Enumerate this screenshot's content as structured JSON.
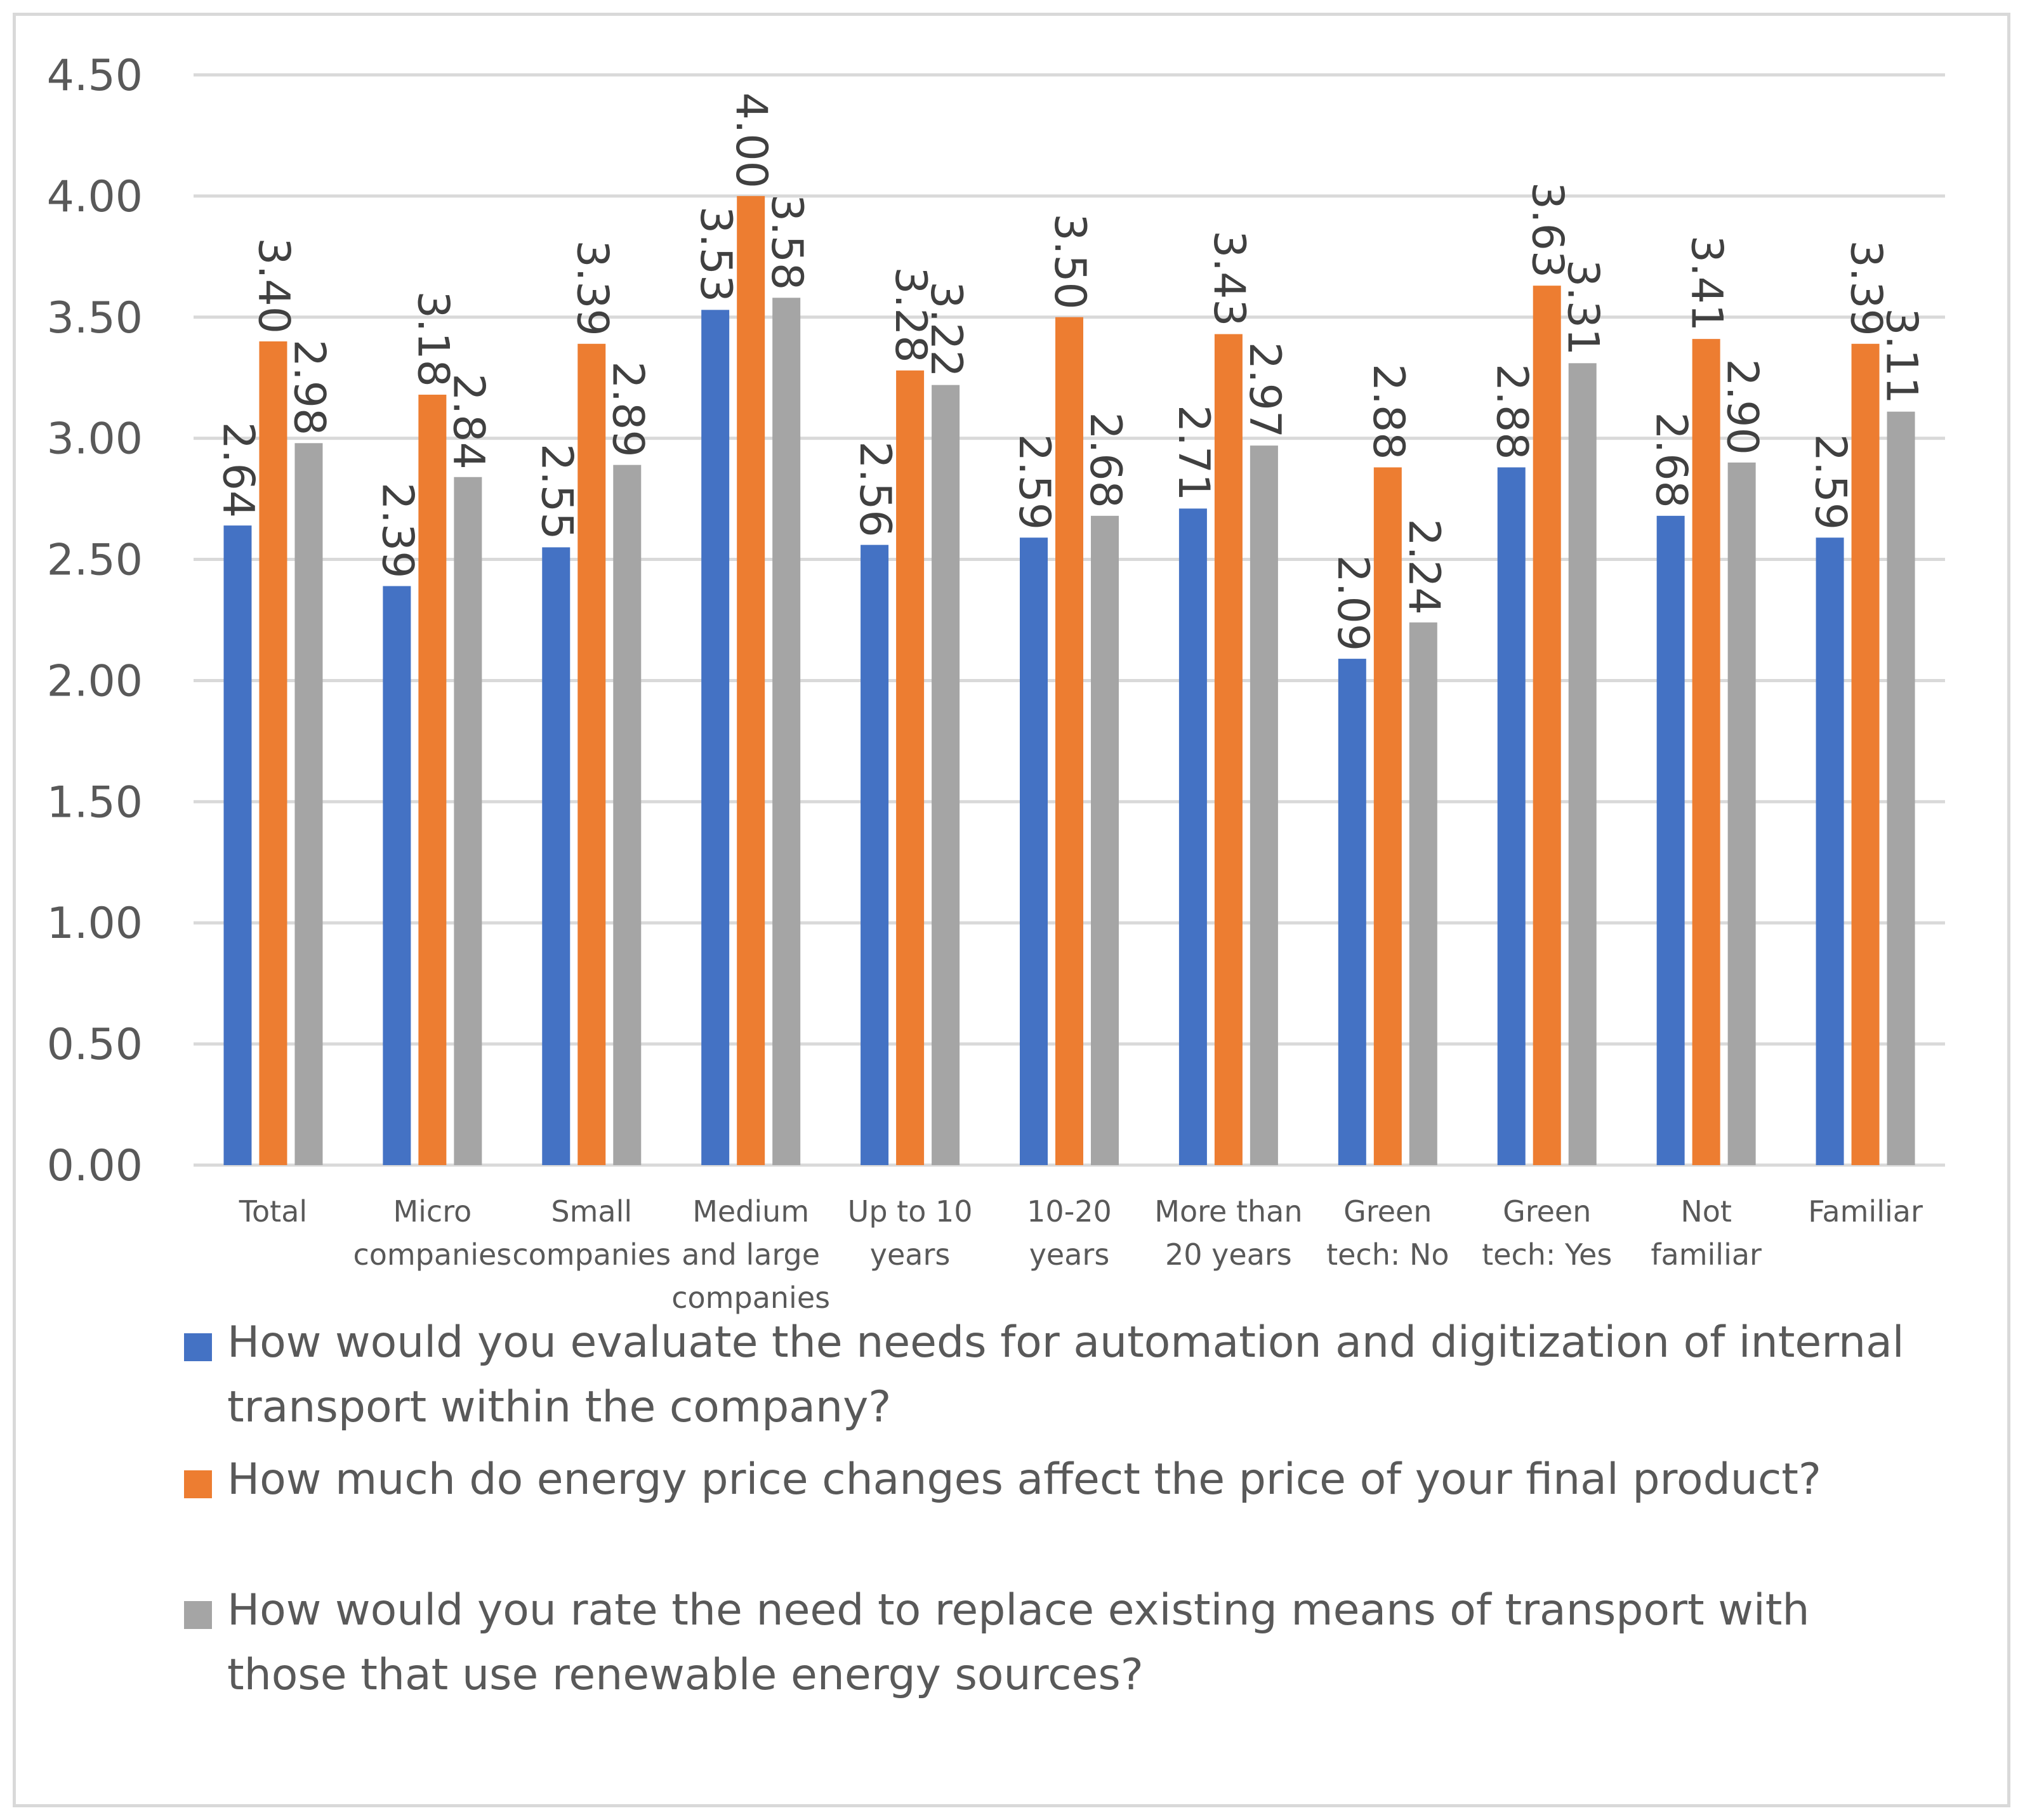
{
  "chart_data": {
    "type": "bar",
    "title": "",
    "xlabel": "",
    "ylabel": "",
    "ylim": [
      0,
      4.5
    ],
    "y_ticks": [
      "0.00",
      "0.50",
      "1.00",
      "1.50",
      "2.00",
      "2.50",
      "3.00",
      "3.50",
      "4.00",
      "4.50"
    ],
    "grid": true,
    "legend_position": "bottom",
    "data_labels": "rotated 90 degrees above bars",
    "categories": [
      [
        "Total"
      ],
      [
        "Micro",
        "companies"
      ],
      [
        "Small",
        "companies"
      ],
      [
        "Medium",
        "and large",
        "companies"
      ],
      [
        "Up to 10",
        "years"
      ],
      [
        "10-20",
        "years"
      ],
      [
        "More than",
        "20 years"
      ],
      [
        "Green",
        "tech: No"
      ],
      [
        "Green",
        "tech: Yes"
      ],
      [
        "Not",
        "familiar"
      ],
      [
        "Familiar"
      ]
    ],
    "series": [
      {
        "name": "How would you evaluate the needs for automation and digitization of internal transport within the company?",
        "color": "#4472c4",
        "values": [
          2.64,
          2.39,
          2.55,
          3.53,
          2.56,
          2.59,
          2.71,
          2.09,
          2.88,
          2.68,
          2.59
        ]
      },
      {
        "name": "How much do energy price changes affect the price of your final product?",
        "color": "#ed7d31",
        "values": [
          3.4,
          3.18,
          3.39,
          4.0,
          3.28,
          3.5,
          3.43,
          2.88,
          3.63,
          3.41,
          3.39
        ]
      },
      {
        "name": "How would you rate the need to replace existing means of transport with those that use renewable energy sources?",
        "color": "#a5a5a5",
        "values": [
          2.98,
          2.84,
          2.89,
          3.58,
          3.22,
          2.68,
          2.97,
          2.24,
          3.31,
          2.9,
          3.11
        ]
      }
    ],
    "colors": {
      "axis_text": "#595959",
      "gridline": "#d9d9d9",
      "border": "#d9d9d9"
    }
  }
}
